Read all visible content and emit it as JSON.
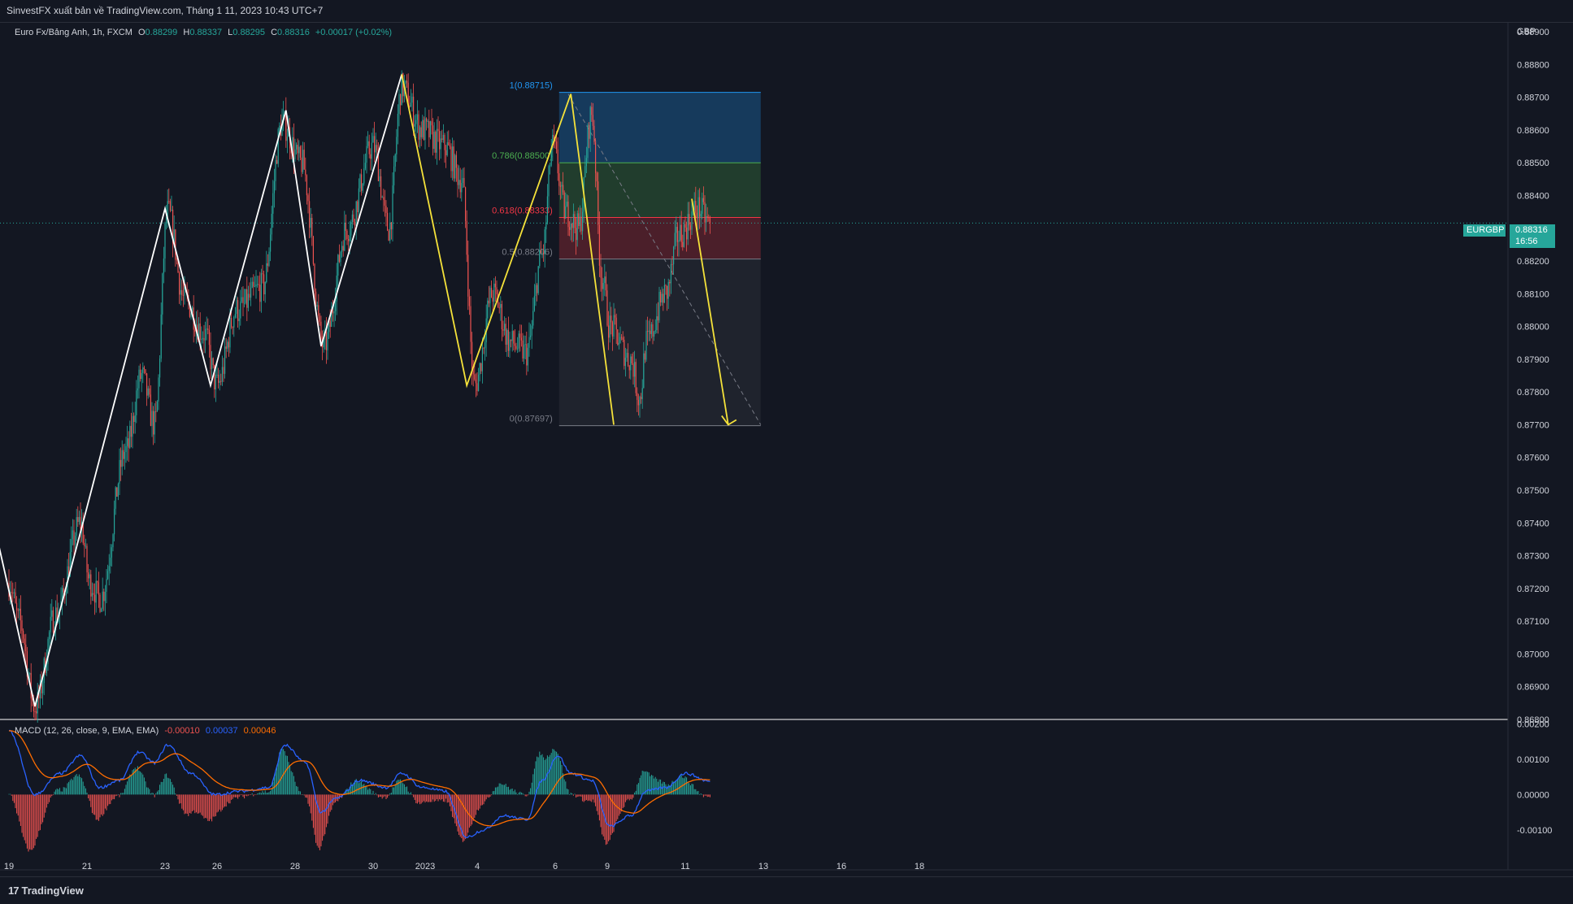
{
  "header": {
    "publisher": "SinvestFX xuất bản về TradingView.com, Tháng 1 11, 2023 10:43 UTC+7"
  },
  "legend": {
    "symbol": "Euro Fx/Bảng Anh, 1h, FXCM",
    "o_label": "O",
    "o": "0.88299",
    "h_label": "H",
    "h": "0.88337",
    "l_label": "L",
    "l": "0.88295",
    "c_label": "C",
    "c": "0.88316",
    "change": "+0.00017 (+0.02%)"
  },
  "macd_legend": {
    "name": "MACD (12, 26, close, 9, EMA, EMA)",
    "hist": "-0.00010",
    "macd": "0.00037",
    "signal": "0.00046"
  },
  "price_tag": {
    "symbol": "EURGBP",
    "price": "0.88316",
    "countdown": "16:56"
  },
  "footer": {
    "brand": "TradingView",
    "logo_mark": "17"
  },
  "colors": {
    "background": "#131722",
    "up": "#26a69a",
    "down": "#ef5350",
    "white_zigzag": "#ffffff",
    "yellow_zigzag": "#f5e23a",
    "macd_line": "#2962ff",
    "signal_line": "#ff6d00",
    "grid": "#2a2e39"
  },
  "chart_data": {
    "type": "candlestick",
    "currency": "GBP",
    "y_axis": {
      "labels": [
        "0.88900",
        "0.88800",
        "0.88700",
        "0.88600",
        "0.88500",
        "0.88400",
        "0.88300",
        "0.88200",
        "0.88100",
        "0.88000",
        "0.87900",
        "0.87800",
        "0.87700",
        "0.87600",
        "0.87500",
        "0.87400",
        "0.87300",
        "0.87200",
        "0.87100",
        "0.87000",
        "0.86900",
        "0.86800"
      ],
      "range": [
        0.868,
        0.8893
      ]
    },
    "x_axis": {
      "labels": [
        "19",
        "21",
        "23",
        "26",
        "28",
        "30",
        "2023",
        "4",
        "6",
        "9",
        "11",
        "13",
        "16",
        "18"
      ],
      "label_bar_index": [
        0,
        60,
        120,
        160,
        220,
        280,
        320,
        360,
        420,
        460,
        520,
        580,
        640,
        700
      ]
    },
    "bars_count": 540,
    "pivots": [
      {
        "i": -10,
        "p": 0.871
      },
      {
        "i": 0,
        "p": 0.8722
      },
      {
        "i": 8,
        "p": 0.871
      },
      {
        "i": 20,
        "p": 0.8684
      },
      {
        "i": 36,
        "p": 0.8712
      },
      {
        "i": 55,
        "p": 0.874
      },
      {
        "i": 62,
        "p": 0.8722
      },
      {
        "i": 70,
        "p": 0.8717
      },
      {
        "i": 90,
        "p": 0.8762
      },
      {
        "i": 102,
        "p": 0.8785
      },
      {
        "i": 112,
        "p": 0.877
      },
      {
        "i": 122,
        "p": 0.8835
      },
      {
        "i": 135,
        "p": 0.8808
      },
      {
        "i": 150,
        "p": 0.8798
      },
      {
        "i": 160,
        "p": 0.8782
      },
      {
        "i": 175,
        "p": 0.8805
      },
      {
        "i": 195,
        "p": 0.8812
      },
      {
        "i": 210,
        "p": 0.8862
      },
      {
        "i": 225,
        "p": 0.885
      },
      {
        "i": 242,
        "p": 0.8794
      },
      {
        "i": 260,
        "p": 0.883
      },
      {
        "i": 280,
        "p": 0.8855
      },
      {
        "i": 292,
        "p": 0.883
      },
      {
        "i": 302,
        "p": 0.8873
      },
      {
        "i": 318,
        "p": 0.886
      },
      {
        "i": 335,
        "p": 0.8855
      },
      {
        "i": 348,
        "p": 0.8845
      },
      {
        "i": 358,
        "p": 0.8782
      },
      {
        "i": 372,
        "p": 0.881
      },
      {
        "i": 386,
        "p": 0.8795
      },
      {
        "i": 398,
        "p": 0.8792
      },
      {
        "i": 410,
        "p": 0.8822
      },
      {
        "i": 418,
        "p": 0.8855
      },
      {
        "i": 428,
        "p": 0.8835
      },
      {
        "i": 438,
        "p": 0.883
      },
      {
        "i": 448,
        "p": 0.8865
      },
      {
        "i": 456,
        "p": 0.8815
      },
      {
        "i": 462,
        "p": 0.88
      },
      {
        "i": 478,
        "p": 0.879
      },
      {
        "i": 485,
        "p": 0.8778
      },
      {
        "i": 490,
        "p": 0.8795
      },
      {
        "i": 505,
        "p": 0.881
      },
      {
        "i": 515,
        "p": 0.8828
      },
      {
        "i": 530,
        "p": 0.8836
      },
      {
        "i": 539,
        "p": 0.88316
      }
    ],
    "white_zigzag": [
      {
        "i": -10,
        "p": 0.8737
      },
      {
        "i": 20,
        "p": 0.8684
      },
      {
        "i": 120,
        "p": 0.8836
      },
      {
        "i": 155,
        "p": 0.8782
      },
      {
        "i": 213,
        "p": 0.8866
      },
      {
        "i": 240,
        "p": 0.8794
      },
      {
        "i": 302,
        "p": 0.8877
      }
    ],
    "yellow_zigzag": [
      {
        "i": 302,
        "p": 0.8877
      },
      {
        "i": 352,
        "p": 0.8782
      },
      {
        "i": 432,
        "p": 0.8871
      },
      {
        "i": 465,
        "p": 0.877
      }
    ],
    "projection_arrow": [
      {
        "i": 525,
        "p": 0.8839
      },
      {
        "i": 553,
        "p": 0.877
      }
    ],
    "fibonacci": {
      "start_index": 423,
      "end_index": 578,
      "levels": [
        {
          "ratio": "1",
          "price": 0.88715,
          "label": "1(0.88715)",
          "color": "#2196f3"
        },
        {
          "ratio": "0.786",
          "price": 0.885,
          "label": "0.786(0.88500)",
          "color": "#4caf50"
        },
        {
          "ratio": "0.618",
          "price": 0.88333,
          "label": "0.618(0.88333)",
          "color": "#f23645"
        },
        {
          "ratio": "0.5",
          "price": 0.88206,
          "label": "0.5(0.88206)",
          "color": "#787b86"
        },
        {
          "ratio": "0",
          "price": 0.87697,
          "label": "0(0.87697)",
          "color": "#787b86"
        }
      ]
    },
    "macd": {
      "y_axis_labels": [
        "0.00200",
        "0.00100",
        "0.00000",
        "-0.00100"
      ],
      "range": [
        -0.0016,
        0.0021
      ],
      "macd_pivots": [
        {
          "i": 0,
          "v": 0.0018
        },
        {
          "i": 20,
          "v": 0.0
        },
        {
          "i": 40,
          "v": 0.0006
        },
        {
          "i": 55,
          "v": 0.0011
        },
        {
          "i": 70,
          "v": 0.0002
        },
        {
          "i": 85,
          "v": 0.0004
        },
        {
          "i": 100,
          "v": 0.0012
        },
        {
          "i": 112,
          "v": 0.0009
        },
        {
          "i": 122,
          "v": 0.0014
        },
        {
          "i": 140,
          "v": 0.0006
        },
        {
          "i": 158,
          "v": 0.0
        },
        {
          "i": 180,
          "v": 0.0001
        },
        {
          "i": 200,
          "v": 0.0002
        },
        {
          "i": 212,
          "v": 0.0014
        },
        {
          "i": 228,
          "v": 0.0009
        },
        {
          "i": 240,
          "v": -0.0005
        },
        {
          "i": 252,
          "v": -0.0001
        },
        {
          "i": 270,
          "v": 0.0004
        },
        {
          "i": 290,
          "v": 0.0002
        },
        {
          "i": 302,
          "v": 0.0006
        },
        {
          "i": 318,
          "v": 0.0002
        },
        {
          "i": 335,
          "v": 0.0001
        },
        {
          "i": 352,
          "v": -0.0012
        },
        {
          "i": 365,
          "v": -0.001
        },
        {
          "i": 380,
          "v": -0.0006
        },
        {
          "i": 398,
          "v": -0.0007
        },
        {
          "i": 410,
          "v": 0.0004
        },
        {
          "i": 422,
          "v": 0.0011
        },
        {
          "i": 432,
          "v": 0.0006
        },
        {
          "i": 448,
          "v": 0.0004
        },
        {
          "i": 462,
          "v": -0.0009
        },
        {
          "i": 478,
          "v": -0.0006
        },
        {
          "i": 490,
          "v": 0.0001
        },
        {
          "i": 505,
          "v": 0.0002
        },
        {
          "i": 520,
          "v": 0.0006
        },
        {
          "i": 539,
          "v": 0.00037
        }
      ]
    }
  }
}
